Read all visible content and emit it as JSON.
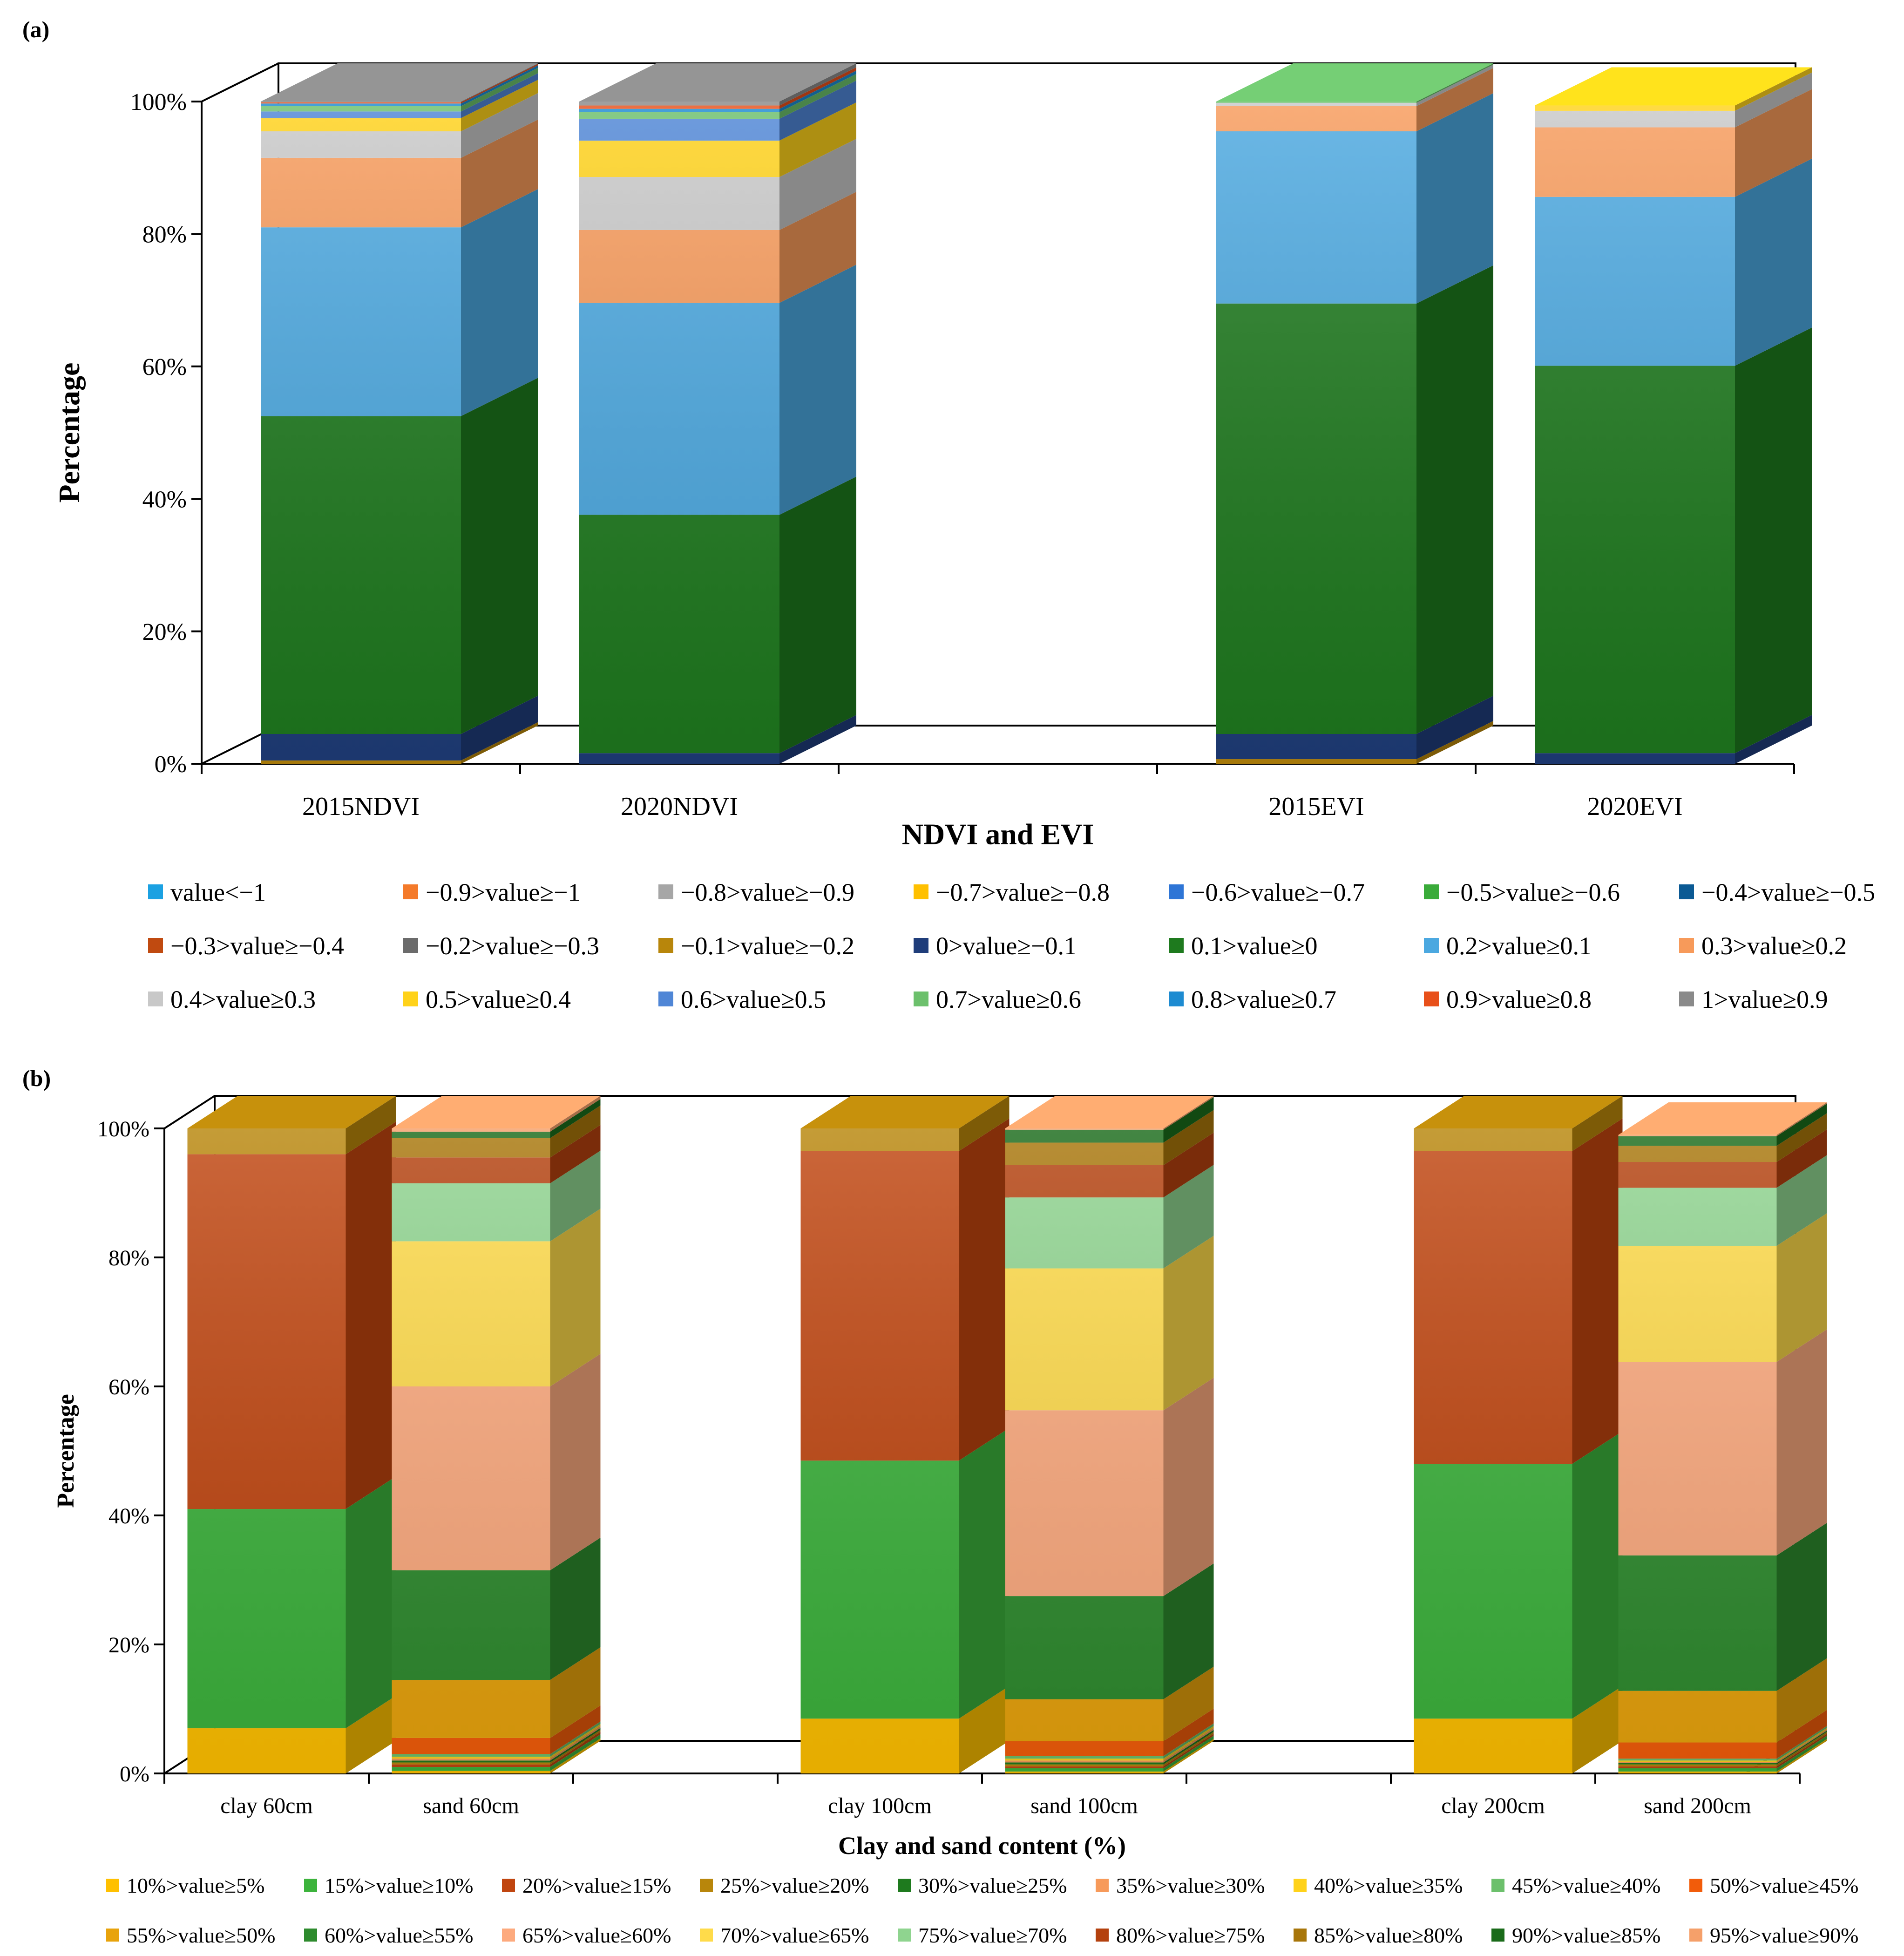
{
  "chart_data": [
    {
      "panel_label": "(a)",
      "type": "bar",
      "stacked": true,
      "style": "3d",
      "title": "",
      "xlabel": "NDVI and EVI",
      "ylabel": "Percentage",
      "ylim": [
        0,
        100
      ],
      "yticks": [
        "0%",
        "20%",
        "40%",
        "60%",
        "80%",
        "100%"
      ],
      "categories": [
        "2015NDVI",
        "2020NDVI",
        "",
        "2015EVI",
        "2020EVI"
      ],
      "legend_position": "bottom",
      "series": [
        {
          "name": "value<−1",
          "color": "#1ba1e2",
          "values": [
            0,
            0,
            null,
            0,
            0
          ]
        },
        {
          "name": "−0.9>value≥−1",
          "color": "#f47a2a",
          "values": [
            0,
            0,
            null,
            0,
            0
          ]
        },
        {
          "name": "−0.8>value≥−0.9",
          "color": "#a6a6a6",
          "values": [
            0,
            0,
            null,
            0,
            0
          ]
        },
        {
          "name": "−0.7>value≥−0.8",
          "color": "#ffc000",
          "values": [
            0,
            0,
            null,
            0,
            0
          ]
        },
        {
          "name": "−0.6>value≥−0.7",
          "color": "#2e75d6",
          "values": [
            0,
            0,
            null,
            0,
            0
          ]
        },
        {
          "name": "−0.5>value≥−0.6",
          "color": "#3aab3a",
          "values": [
            0,
            0,
            null,
            0,
            0
          ]
        },
        {
          "name": "−0.4>value≥−0.5",
          "color": "#0b5a94",
          "values": [
            0,
            0,
            null,
            0,
            0
          ]
        },
        {
          "name": "−0.3>value≥−0.4",
          "color": "#c04a10",
          "values": [
            0,
            0,
            null,
            0,
            0
          ]
        },
        {
          "name": "−0.2>value≥−0.3",
          "color": "#6b6b6b",
          "values": [
            0,
            0,
            null,
            0,
            0
          ]
        },
        {
          "name": "−0.1>value≥−0.2",
          "color": "#b8860b",
          "values": [
            0.5,
            0,
            null,
            0.7,
            0
          ]
        },
        {
          "name": "0>value≥−0.1",
          "color": "#1f3d7a",
          "values": [
            4,
            1.6,
            null,
            3.8,
            1.6
          ]
        },
        {
          "name": "0.1>value≥0",
          "color": "#1e7a1e",
          "values": [
            48,
            36,
            null,
            65,
            58.5
          ]
        },
        {
          "name": "0.2>value≥0.1",
          "color": "#4ba8e0",
          "values": [
            28.5,
            32,
            null,
            26,
            25.5
          ]
        },
        {
          "name": "0.3>value≥0.2",
          "color": "#f79a5a",
          "values": [
            10.5,
            11,
            null,
            3.8,
            10.5
          ]
        },
        {
          "name": "0.4>value≥0.3",
          "color": "#c8c8c8",
          "values": [
            4,
            8,
            null,
            0.5,
            2.5
          ]
        },
        {
          "name": "0.5>value≥0.4",
          "color": "#ffd21a",
          "values": [
            2,
            5.5,
            null,
            0,
            0.8
          ]
        },
        {
          "name": "0.6>value≥0.5",
          "color": "#4f86d6",
          "values": [
            1,
            3.3,
            null,
            0,
            0
          ]
        },
        {
          "name": "0.7>value≥0.6",
          "color": "#6cc06c",
          "values": [
            0.8,
            1,
            null,
            0.2,
            0
          ]
        },
        {
          "name": "0.8>value≥0.7",
          "color": "#1d8bd1",
          "values": [
            0.4,
            0.5,
            null,
            0,
            0
          ]
        },
        {
          "name": "0.9>value≥0.8",
          "color": "#e8501a",
          "values": [
            0.2,
            0.5,
            null,
            0,
            0
          ]
        },
        {
          "name": "1>value≥0.9",
          "color": "#8a8a8a",
          "values": [
            0.1,
            0.6,
            null,
            0,
            0
          ]
        }
      ]
    },
    {
      "panel_label": "(b)",
      "type": "bar",
      "stacked": true,
      "style": "3d",
      "title": "",
      "xlabel": "Clay and sand content (%)",
      "ylabel": "Percentage",
      "ylim": [
        0,
        100
      ],
      "yticks": [
        "0%",
        "20%",
        "40%",
        "60%",
        "80%",
        "100%"
      ],
      "categories": [
        "clay 60cm",
        "sand 60cm",
        "",
        "clay 100cm",
        "sand 100cm",
        "",
        "clay 200cm",
        "sand 200cm"
      ],
      "legend_position": "bottom",
      "series": [
        {
          "name": "10%>value≥5%",
          "color": "#ffc000",
          "values": [
            7,
            0.4,
            null,
            8.5,
            0.3,
            null,
            8.5,
            0.3
          ]
        },
        {
          "name": "15%>value≥10%",
          "color": "#3cb33c",
          "values": [
            34,
            0.6,
            null,
            40,
            0.5,
            null,
            39.5,
            0.5
          ]
        },
        {
          "name": "20%>value≥15%",
          "color": "#c0450f",
          "values": [
            55,
            0.4,
            null,
            48,
            0.3,
            null,
            48.5,
            0.3
          ]
        },
        {
          "name": "25%>value≥20%",
          "color": "#b8860b",
          "values": [
            4,
            0.3,
            null,
            3.5,
            0.3,
            null,
            3.5,
            0.3
          ]
        },
        {
          "name": "30%>value≥25%",
          "color": "#1e7a1e",
          "values": [
            0,
            0.3,
            null,
            0,
            0.3,
            null,
            0,
            0.2
          ]
        },
        {
          "name": "35%>value≥30%",
          "color": "#f79a5a",
          "values": [
            0,
            0.3,
            null,
            0,
            0.3,
            null,
            0,
            0.2
          ]
        },
        {
          "name": "40%>value≥35%",
          "color": "#ffd21a",
          "values": [
            0,
            0.3,
            null,
            0,
            0.3,
            null,
            0,
            0.2
          ]
        },
        {
          "name": "45%>value≥40%",
          "color": "#6cc06c",
          "values": [
            0,
            0.4,
            null,
            0,
            0.4,
            null,
            0,
            0.3
          ]
        },
        {
          "name": "50%>value≥45%",
          "color": "#f25c0a",
          "values": [
            0,
            2.5,
            null,
            0,
            2.3,
            null,
            0,
            2.5
          ]
        },
        {
          "name": "55%>value≥50%",
          "color": "#e8a30c",
          "values": [
            0,
            9,
            null,
            0,
            6.5,
            null,
            0,
            8
          ]
        },
        {
          "name": "60%>value≥55%",
          "color": "#2e8b2e",
          "values": [
            0,
            17,
            null,
            0,
            16,
            null,
            0,
            21
          ]
        },
        {
          "name": "65%>value≥60%",
          "color": "#fdaa7e",
          "values": [
            0,
            28.5,
            null,
            0,
            28.8,
            null,
            0,
            30
          ]
        },
        {
          "name": "70%>value≥65%",
          "color": "#ffdb4a",
          "values": [
            0,
            22.5,
            null,
            0,
            22,
            null,
            0,
            18
          ]
        },
        {
          "name": "75%>value≥70%",
          "color": "#8fd48f",
          "values": [
            0,
            9,
            null,
            0,
            11,
            null,
            0,
            9
          ]
        },
        {
          "name": "80%>value≥75%",
          "color": "#b4410e",
          "values": [
            0,
            4,
            null,
            0,
            5,
            null,
            0,
            4
          ]
        },
        {
          "name": "85%>value≥80%",
          "color": "#a8760a",
          "values": [
            0,
            3,
            null,
            0,
            3.5,
            null,
            0,
            2.5
          ]
        },
        {
          "name": "90%>value≥85%",
          "color": "#1a6b1a",
          "values": [
            0,
            1,
            null,
            0,
            2,
            null,
            0,
            1.5
          ]
        },
        {
          "name": "95%>value≥90%",
          "color": "#f5a06a",
          "values": [
            0,
            0.5,
            null,
            0,
            0.2,
            null,
            0,
            0.2
          ]
        }
      ]
    }
  ]
}
